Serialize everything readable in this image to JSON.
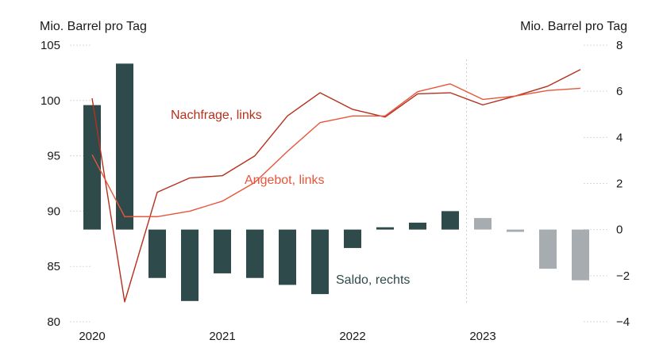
{
  "chart_data": {
    "type": "bar+line",
    "left_axis_unit": "Mio. Barrel pro Tag",
    "right_axis_unit": "Mio. Barrel pro Tag",
    "left_ylim": [
      80,
      105
    ],
    "right_ylim": [
      -4,
      8
    ],
    "left_ticks": [
      "105",
      "100",
      "95",
      "90",
      "85",
      "80"
    ],
    "right_ticks": [
      "8",
      "6",
      "4",
      "2",
      "0",
      "−2",
      "−4"
    ],
    "x_tick_labels": [
      "2020",
      "2021",
      "2022",
      "2023"
    ],
    "quarters": [
      "2020Q1",
      "2020Q2",
      "2020Q3",
      "2020Q4",
      "2021Q1",
      "2021Q2",
      "2021Q3",
      "2021Q4",
      "2022Q1",
      "2022Q2",
      "2022Q3",
      "2022Q4",
      "2023Q1",
      "2023Q2",
      "2023Q3",
      "2023Q4"
    ],
    "forecast_start_index": 12,
    "series": [
      {
        "name": "Saldo, rechts",
        "kind": "bar",
        "axis": "right",
        "values": [
          5.4,
          7.2,
          -2.1,
          -3.1,
          -1.9,
          -2.1,
          -2.4,
          -2.8,
          -0.8,
          0.1,
          0.3,
          0.8,
          0.5,
          -0.1,
          -1.7,
          -2.2
        ],
        "color": "#2e4a4a",
        "forecast_color": "#a6acaf"
      },
      {
        "name": "Nachfrage, links",
        "kind": "line",
        "axis": "left",
        "values": [
          100.2,
          81.8,
          91.7,
          93.0,
          93.2,
          95.0,
          98.6,
          100.7,
          99.2,
          98.5,
          100.6,
          100.7,
          99.6,
          100.4,
          101.3,
          102.8
        ],
        "color": "#b5301c"
      },
      {
        "name": "Angebot, links",
        "kind": "line",
        "axis": "left",
        "values": [
          95.1,
          89.5,
          89.5,
          90.0,
          90.9,
          92.6,
          95.4,
          98.0,
          98.6,
          98.6,
          100.8,
          101.5,
          100.1,
          100.4,
          100.9,
          101.1
        ],
        "color": "#e8553a"
      }
    ],
    "annotations": [
      {
        "text": "Nachfrage, links",
        "color": "#b5301c"
      },
      {
        "text": "Angebot, links",
        "color": "#e8553a"
      },
      {
        "text": "Saldo, rechts",
        "color": "#2e4a4a"
      }
    ],
    "grid": "dashed horizontal segments at ticks",
    "legend": "inline annotations"
  }
}
